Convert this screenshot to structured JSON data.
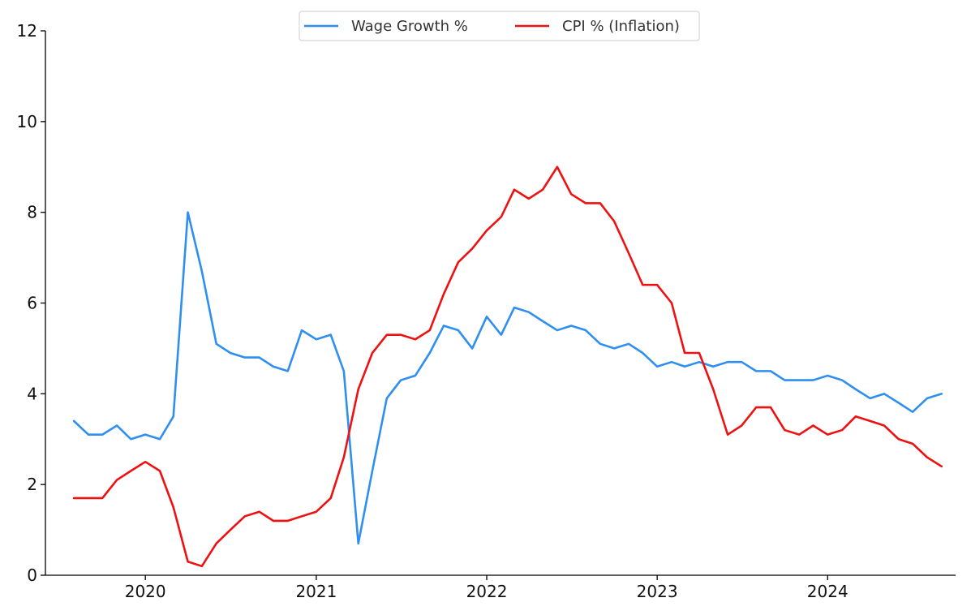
{
  "chart_data": {
    "type": "line",
    "title": "",
    "xlabel": "",
    "ylabel": "",
    "x_axis": "date (monthly)",
    "xlim": [
      "2019-06-01",
      "2024-10-01"
    ],
    "ylim": [
      0,
      12
    ],
    "yticks": [
      0,
      2,
      4,
      6,
      8,
      10,
      12
    ],
    "xticks": [
      {
        "date": "2020-01-01",
        "label": "2020"
      },
      {
        "date": "2021-01-01",
        "label": "2021"
      },
      {
        "date": "2022-01-01",
        "label": "2022"
      },
      {
        "date": "2023-01-01",
        "label": "2023"
      },
      {
        "date": "2024-01-01",
        "label": "2024"
      }
    ],
    "grid": false,
    "legend": {
      "placement": "top-center",
      "columns": 2
    },
    "x": [
      "2019-08",
      "2019-09",
      "2019-10",
      "2019-11",
      "2019-12",
      "2020-01",
      "2020-02",
      "2020-03",
      "2020-04",
      "2020-05",
      "2020-06",
      "2020-07",
      "2020-08",
      "2020-09",
      "2020-10",
      "2020-11",
      "2020-12",
      "2021-01",
      "2021-02",
      "2021-03",
      "2021-04",
      "2021-05",
      "2021-06",
      "2021-07",
      "2021-08",
      "2021-09",
      "2021-10",
      "2021-11",
      "2021-12",
      "2022-01",
      "2022-02",
      "2022-03",
      "2022-04",
      "2022-05",
      "2022-06",
      "2022-07",
      "2022-08",
      "2022-09",
      "2022-10",
      "2022-11",
      "2022-12",
      "2023-01",
      "2023-02",
      "2023-03",
      "2023-04",
      "2023-05",
      "2023-06",
      "2023-07",
      "2023-08",
      "2023-09",
      "2023-10",
      "2023-11",
      "2023-12",
      "2024-01",
      "2024-02",
      "2024-03",
      "2024-04",
      "2024-05",
      "2024-06",
      "2024-07",
      "2024-08",
      "2024-09"
    ],
    "series": [
      {
        "name": "Wage Growth %",
        "color": "#2f8ff0",
        "values": [
          3.4,
          3.1,
          3.1,
          3.3,
          3.0,
          3.1,
          3.0,
          3.5,
          8.0,
          6.7,
          5.1,
          4.9,
          4.8,
          4.8,
          4.6,
          4.5,
          5.4,
          5.2,
          5.3,
          4.5,
          0.7,
          2.3,
          3.9,
          4.3,
          4.4,
          4.9,
          5.5,
          5.4,
          5.0,
          5.7,
          5.3,
          5.9,
          5.8,
          5.6,
          5.4,
          5.5,
          5.4,
          5.1,
          5.0,
          5.1,
          4.9,
          4.6,
          4.7,
          4.6,
          4.7,
          4.6,
          4.7,
          4.7,
          4.5,
          4.5,
          4.3,
          4.3,
          4.3,
          4.4,
          4.3,
          4.1,
          3.9,
          4.0,
          3.8,
          3.6,
          3.9,
          4.0
        ]
      },
      {
        "name": "CPI % (Inflation)",
        "color": "#ee1111",
        "values": [
          1.7,
          1.7,
          1.7,
          2.1,
          2.3,
          2.5,
          2.3,
          1.5,
          0.3,
          0.2,
          0.7,
          1.0,
          1.3,
          1.4,
          1.2,
          1.2,
          1.3,
          1.4,
          1.7,
          2.6,
          4.1,
          4.9,
          5.3,
          5.3,
          5.2,
          5.4,
          6.2,
          6.9,
          7.2,
          7.6,
          7.9,
          8.5,
          8.3,
          8.5,
          9.0,
          8.4,
          8.2,
          8.2,
          7.8,
          7.1,
          6.4,
          6.4,
          6.0,
          4.9,
          4.9,
          4.1,
          3.1,
          3.3,
          3.7,
          3.7,
          3.2,
          3.1,
          3.3,
          3.1,
          3.2,
          3.5,
          3.4,
          3.3,
          3.0,
          2.9,
          2.6,
          2.4
        ]
      }
    ]
  }
}
